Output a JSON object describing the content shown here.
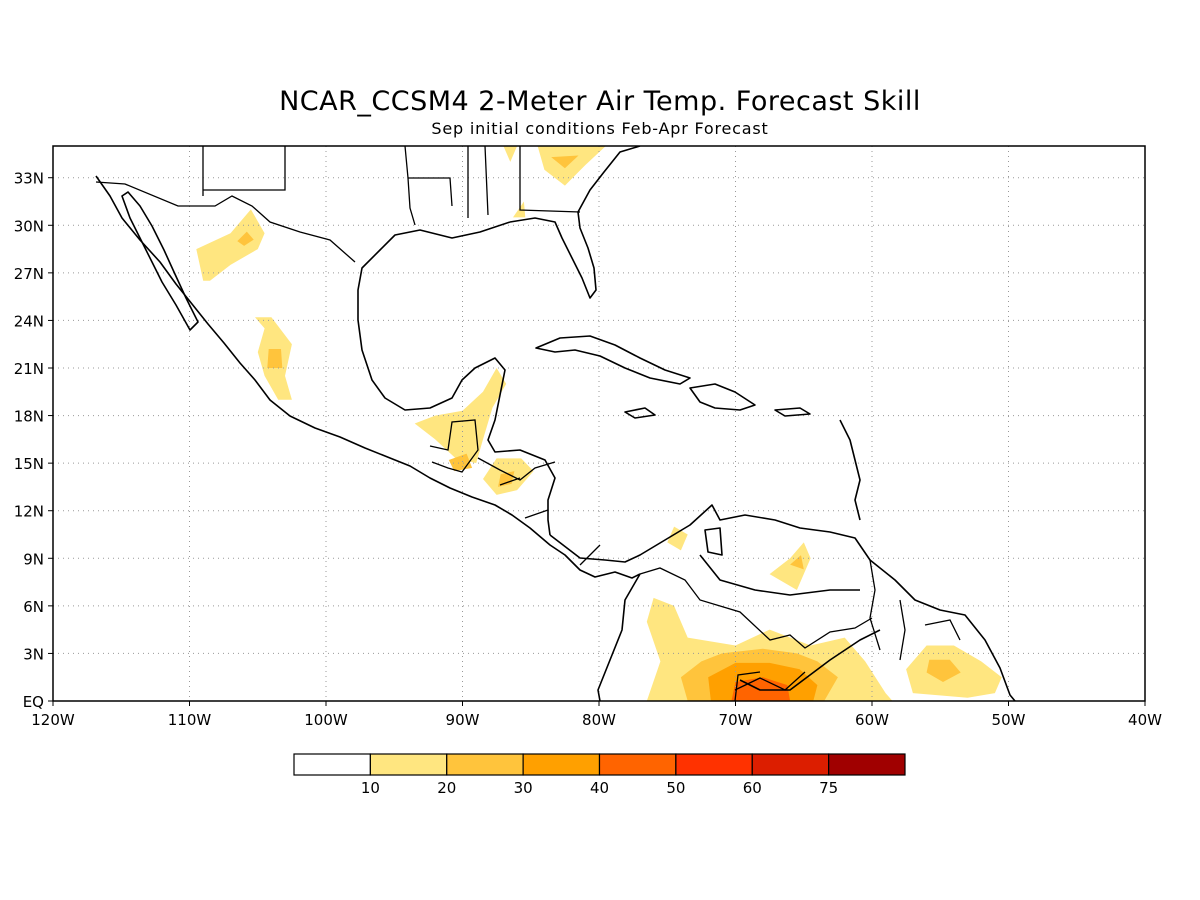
{
  "title": "NCAR_CCSM4 2-Meter Air Temp. Forecast Skill",
  "subtitle": "Sep initial conditions  Feb-Apr Forecast",
  "map": {
    "lon_range": [
      -120,
      -40
    ],
    "lat_range": [
      0,
      35
    ],
    "grid": true,
    "lat_labels": [
      {
        "value": 33,
        "text": "33N"
      },
      {
        "value": 30,
        "text": "30N"
      },
      {
        "value": 27,
        "text": "27N"
      },
      {
        "value": 24,
        "text": "24N"
      },
      {
        "value": 21,
        "text": "21N"
      },
      {
        "value": 18,
        "text": "18N"
      },
      {
        "value": 15,
        "text": "15N"
      },
      {
        "value": 12,
        "text": "12N"
      },
      {
        "value": 9,
        "text": "9N"
      },
      {
        "value": 6,
        "text": "6N"
      },
      {
        "value": 3,
        "text": "3N"
      },
      {
        "value": 0,
        "text": "EQ"
      }
    ],
    "lon_labels": [
      {
        "value": -120,
        "text": "120W"
      },
      {
        "value": -110,
        "text": "110W"
      },
      {
        "value": -100,
        "text": "100W"
      },
      {
        "value": -90,
        "text": "90W"
      },
      {
        "value": -80,
        "text": "80W"
      },
      {
        "value": -70,
        "text": "70W"
      },
      {
        "value": -60,
        "text": "60W"
      },
      {
        "value": -50,
        "text": "50W"
      },
      {
        "value": -40,
        "text": "40W"
      }
    ]
  },
  "colorbar": {
    "colors": [
      "#ffffff",
      "#ffe680",
      "#ffc43c",
      "#ffa000",
      "#ff6400",
      "#ff3200",
      "#dc1e00",
      "#a00000"
    ],
    "labels": [
      "10",
      "20",
      "30",
      "40",
      "50",
      "60",
      "75"
    ]
  },
  "skill_regions": [
    {
      "name": "nw-mexico",
      "level": 1,
      "points": [
        [
          -109,
          26.5
        ],
        [
          -109.5,
          28.5
        ],
        [
          -107,
          29.5
        ],
        [
          -105.5,
          31
        ],
        [
          -104.5,
          29.5
        ],
        [
          -105,
          28.5
        ],
        [
          -107,
          27.5
        ],
        [
          -108.5,
          26.5
        ]
      ]
    },
    {
      "name": "nw-mexico-core",
      "level": 2,
      "points": [
        [
          -106.5,
          29
        ],
        [
          -105.8,
          29.6
        ],
        [
          -105.3,
          29.1
        ],
        [
          -106.0,
          28.7
        ]
      ]
    },
    {
      "name": "w-mexico",
      "level": 1,
      "points": [
        [
          -104.5,
          23.5
        ],
        [
          -105.2,
          24.2
        ],
        [
          -104,
          24.2
        ],
        [
          -102.5,
          22.5
        ],
        [
          -103,
          20.5
        ],
        [
          -102.5,
          19
        ],
        [
          -103.5,
          19
        ],
        [
          -104.5,
          20.5
        ],
        [
          -105,
          22
        ]
      ]
    },
    {
      "name": "w-mexico-core",
      "level": 2,
      "points": [
        [
          -104.3,
          21.0
        ],
        [
          -104.2,
          22.2
        ],
        [
          -103.3,
          22.2
        ],
        [
          -103.2,
          21.0
        ]
      ]
    },
    {
      "name": "yucatan",
      "level": 1,
      "points": [
        [
          -90.5,
          15.3
        ],
        [
          -92,
          16.5
        ],
        [
          -93.5,
          17.5
        ],
        [
          -92,
          18
        ],
        [
          -90,
          18.3
        ],
        [
          -88.5,
          19.5
        ],
        [
          -87.5,
          21
        ],
        [
          -86.8,
          20
        ],
        [
          -87.8,
          18.5
        ],
        [
          -88.5,
          16.5
        ],
        [
          -89,
          15
        ]
      ]
    },
    {
      "name": "guatemala-core",
      "level": 2,
      "points": [
        [
          -91,
          15.2
        ],
        [
          -89.7,
          15.6
        ],
        [
          -89.3,
          14.7
        ],
        [
          -90.6,
          14.5
        ]
      ]
    },
    {
      "name": "honduras",
      "level": 1,
      "points": [
        [
          -88.5,
          14
        ],
        [
          -87.5,
          15.3
        ],
        [
          -85.7,
          15.3
        ],
        [
          -84.8,
          14.5
        ],
        [
          -86,
          13.3
        ],
        [
          -87.5,
          13
        ]
      ]
    },
    {
      "name": "honduras-core",
      "level": 2,
      "points": [
        [
          -87.2,
          14.3
        ],
        [
          -86.2,
          14.5
        ],
        [
          -86.4,
          13.7
        ],
        [
          -87.4,
          13.5
        ]
      ]
    },
    {
      "name": "se-usa",
      "level": 1,
      "points": [
        [
          -84.5,
          35
        ],
        [
          -84,
          33.5
        ],
        [
          -82.5,
          32.5
        ],
        [
          -81,
          33.8
        ],
        [
          -79.5,
          35
        ]
      ]
    },
    {
      "name": "se-usa-core",
      "level": 2,
      "points": [
        [
          -83.5,
          34.3
        ],
        [
          -82.5,
          33.6
        ],
        [
          -81.5,
          34.4
        ]
      ]
    },
    {
      "name": "gulf-coast",
      "level": 1,
      "points": [
        [
          -86.3,
          30.5
        ],
        [
          -85.5,
          31.5
        ],
        [
          -85.4,
          30.5
        ]
      ]
    },
    {
      "name": "alabama-north",
      "level": 1,
      "points": [
        [
          -87,
          35
        ],
        [
          -86.5,
          34
        ],
        [
          -86,
          35
        ]
      ]
    },
    {
      "name": "venezuela",
      "level": 1,
      "points": [
        [
          -67.5,
          8
        ],
        [
          -66,
          9
        ],
        [
          -65,
          10
        ],
        [
          -64.5,
          9
        ],
        [
          -65.5,
          7
        ]
      ]
    },
    {
      "name": "venezuela-core",
      "level": 2,
      "points": [
        [
          -66,
          8.6
        ],
        [
          -65.2,
          9.2
        ],
        [
          -65,
          8.3
        ]
      ]
    },
    {
      "name": "colombia-coast",
      "level": 1,
      "points": [
        [
          -75,
          10
        ],
        [
          -74.5,
          11
        ],
        [
          -73.5,
          10.5
        ],
        [
          -74,
          9.5
        ]
      ]
    },
    {
      "name": "amazon",
      "level": 1,
      "points": [
        [
          -76.5,
          0
        ],
        [
          -75.5,
          2.5
        ],
        [
          -76.5,
          5
        ],
        [
          -76,
          6.5
        ],
        [
          -74.5,
          6
        ],
        [
          -73.5,
          4
        ],
        [
          -70,
          3.5
        ],
        [
          -67.5,
          4.5
        ],
        [
          -64.5,
          3.5
        ],
        [
          -62,
          4
        ],
        [
          -60.5,
          2.5
        ],
        [
          -59,
          0.5
        ],
        [
          -58.5,
          0
        ]
      ]
    },
    {
      "name": "amazon-mid",
      "level": 2,
      "points": [
        [
          -73.5,
          0
        ],
        [
          -74,
          1.5
        ],
        [
          -72.5,
          2.5
        ],
        [
          -71,
          3
        ],
        [
          -68,
          3.3
        ],
        [
          -65.5,
          3
        ],
        [
          -64,
          2.5
        ],
        [
          -62.5,
          1.5
        ],
        [
          -63.5,
          0
        ]
      ]
    },
    {
      "name": "amazon-core",
      "level": 3,
      "points": [
        [
          -71.8,
          0
        ],
        [
          -72.0,
          1.5
        ],
        [
          -70,
          2.4
        ],
        [
          -67.5,
          2.4
        ],
        [
          -65.3,
          2.0
        ],
        [
          -64.0,
          1.0
        ],
        [
          -64.3,
          0
        ]
      ]
    },
    {
      "name": "amazon-peak",
      "level": 4,
      "points": [
        [
          -70.3,
          0
        ],
        [
          -70,
          1.2
        ],
        [
          -68,
          1.5
        ],
        [
          -66.2,
          1.0
        ],
        [
          -66,
          0
        ]
      ]
    },
    {
      "name": "guiana",
      "level": 1,
      "points": [
        [
          -57,
          0.5
        ],
        [
          -57.5,
          2
        ],
        [
          -56,
          3.5
        ],
        [
          -54,
          3.5
        ],
        [
          -52,
          2.5
        ],
        [
          -50.5,
          1.5
        ],
        [
          -51,
          0.5
        ],
        [
          -53,
          0.2
        ]
      ]
    },
    {
      "name": "guiana-core",
      "level": 2,
      "points": [
        [
          -56,
          1.8
        ],
        [
          -55.8,
          2.6
        ],
        [
          -54.3,
          2.6
        ],
        [
          -53.5,
          1.8
        ],
        [
          -54.8,
          1.2
        ]
      ]
    }
  ]
}
